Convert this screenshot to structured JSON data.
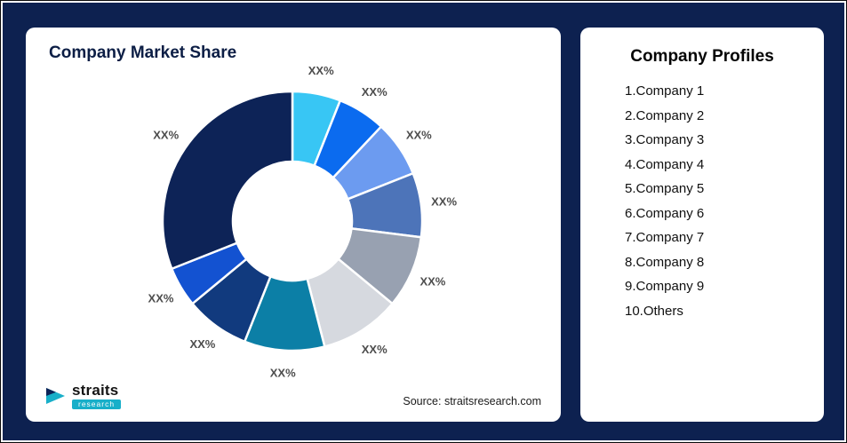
{
  "market_share_card": {
    "title": "Company Market Share",
    "source": "Source: straitsresearch.com"
  },
  "logo": {
    "name": "straits",
    "sub": "research"
  },
  "profiles": {
    "title": "Company Profiles",
    "items": [
      "1.Company 1",
      "2.Company 2",
      "3.Company 3",
      "4.Company 4",
      "5.Company 5",
      "6.Company 6",
      "7.Company 7",
      "8.Company 8",
      "9.Company 9",
      "10.Others"
    ]
  },
  "chart_data": {
    "type": "pie",
    "variant": "donut",
    "title": "Company Market Share",
    "legend_position": "none",
    "start_angle_deg": -90,
    "direction": "clockwise",
    "segments": [
      {
        "company": "Company 1",
        "label": "XX%",
        "value": 6,
        "color": "#38C6F4"
      },
      {
        "company": "Company 2",
        "label": "XX%",
        "value": 6,
        "color": "#0B6BEF"
      },
      {
        "company": "Company 3",
        "label": "XX%",
        "value": 7,
        "color": "#6C9BF0"
      },
      {
        "company": "Company 4",
        "label": "XX%",
        "value": 8,
        "color": "#4D74B9"
      },
      {
        "company": "Company 5",
        "label": "XX%",
        "value": 9,
        "color": "#98A1B1"
      },
      {
        "company": "Company 6",
        "label": "XX%",
        "value": 10,
        "color": "#D6D9DF"
      },
      {
        "company": "Company 7",
        "label": "XX%",
        "value": 10,
        "color": "#0C7FA6"
      },
      {
        "company": "Company 8",
        "label": "XX%",
        "value": 8,
        "color": "#113A7E"
      },
      {
        "company": "Company 9",
        "label": "XX%",
        "value": 5,
        "color": "#1352D1"
      },
      {
        "company": "Others",
        "label": "XX%",
        "value": 31,
        "color": "#0D2357"
      }
    ]
  }
}
